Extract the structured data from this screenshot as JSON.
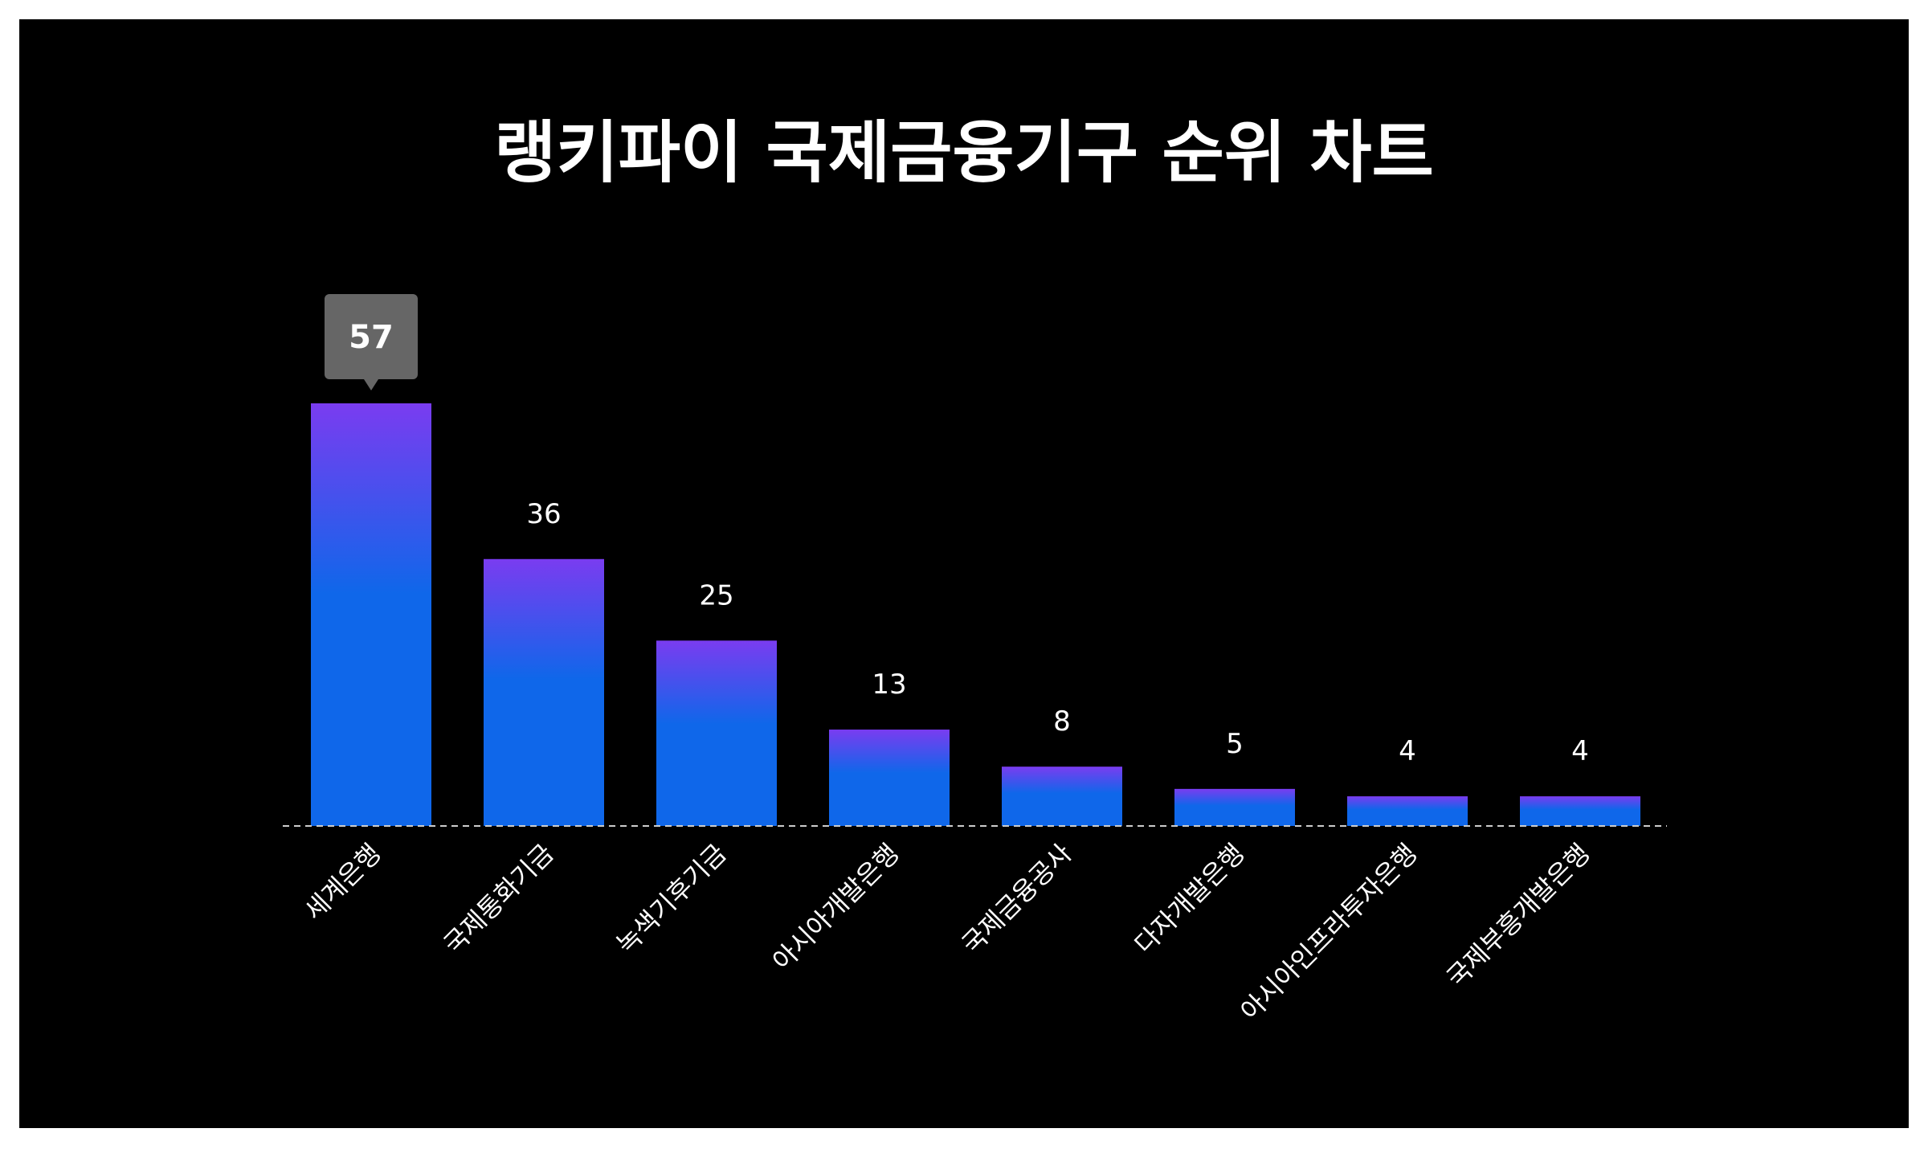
{
  "chart_data": {
    "type": "bar",
    "title": "랭키파이 국제금융기구 순위 차트",
    "categories": [
      "세계은행",
      "국제통화기금",
      "녹색기후기금",
      "아시아개발은행",
      "국제금융공사",
      "다자개발은행",
      "아시아인프라투자은행",
      "국제부흥개발은행"
    ],
    "values": [
      57,
      36,
      25,
      13,
      8,
      5,
      4,
      4
    ],
    "ylim": [
      0,
      57
    ],
    "highlighted_index": 0,
    "grid": false,
    "colors": {
      "background": "#000000",
      "bar_top": "#7a3cf0",
      "bar_bottom": "#0f67ea",
      "tooltip_bg": "#666666",
      "baseline": "#cccccc",
      "text": "#ffffff"
    }
  }
}
